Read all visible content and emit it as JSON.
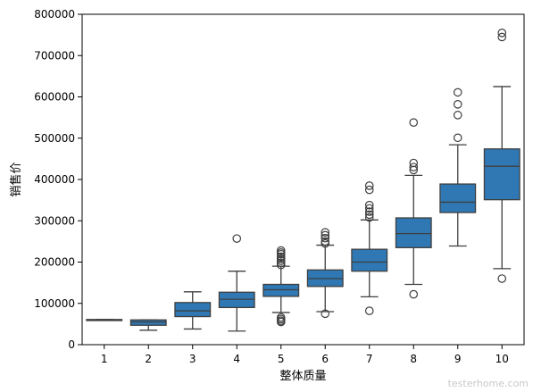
{
  "chart_data": {
    "type": "box",
    "xlabel": "整体质量",
    "ylabel": "销售价",
    "ylim": [
      0,
      800000
    ],
    "y_ticks": [
      0,
      100000,
      200000,
      300000,
      400000,
      500000,
      600000,
      700000,
      800000
    ],
    "grid": false,
    "box_color": "#2f78b4",
    "line_color": "#3f3f3f",
    "categories": [
      "1",
      "2",
      "3",
      "4",
      "5",
      "6",
      "7",
      "8",
      "9",
      "10"
    ],
    "boxes": [
      {
        "category": "1",
        "whisker_low": 60000,
        "q1": 60000,
        "median": 60000,
        "q3": 61000,
        "whisker_high": 61000,
        "outliers": []
      },
      {
        "category": "2",
        "whisker_low": 35000,
        "q1": 47000,
        "median": 55000,
        "q3": 60000,
        "whisker_high": 60000,
        "outliers": []
      },
      {
        "category": "3",
        "whisker_low": 38000,
        "q1": 68000,
        "median": 82000,
        "q3": 102000,
        "whisker_high": 128000,
        "outliers": []
      },
      {
        "category": "4",
        "whisker_low": 33000,
        "q1": 90000,
        "median": 110000,
        "q3": 127000,
        "whisker_high": 178000,
        "outliers": [
          257000
        ]
      },
      {
        "category": "5",
        "whisker_low": 78000,
        "q1": 117000,
        "median": 133000,
        "q3": 146000,
        "whisker_high": 190000,
        "outliers": [
          55000,
          58000,
          62000,
          66000,
          193000,
          198000,
          203000,
          208000,
          213000,
          219000,
          223000,
          228000
        ]
      },
      {
        "category": "6",
        "whisker_low": 80000,
        "q1": 141000,
        "median": 160000,
        "q3": 181000,
        "whisker_high": 241000,
        "outliers": [
          75000,
          245000,
          250000,
          258000,
          265000,
          272000
        ]
      },
      {
        "category": "7",
        "whisker_low": 116000,
        "q1": 178000,
        "median": 200000,
        "q3": 231000,
        "whisker_high": 302000,
        "outliers": [
          82000,
          308000,
          315000,
          322000,
          330000,
          338000,
          375000,
          385000
        ]
      },
      {
        "category": "8",
        "whisker_low": 146000,
        "q1": 235000,
        "median": 269000,
        "q3": 307000,
        "whisker_high": 410000,
        "outliers": [
          122000,
          423000,
          430000,
          440000,
          538000
        ]
      },
      {
        "category": "9",
        "whisker_low": 239000,
        "q1": 320000,
        "median": 345000,
        "q3": 389000,
        "whisker_high": 484000,
        "outliers": [
          501000,
          556000,
          582000,
          611000
        ]
      },
      {
        "category": "10",
        "whisker_low": 184000,
        "q1": 351000,
        "median": 432000,
        "q3": 474000,
        "whisker_high": 625000,
        "outliers": [
          160000,
          745000,
          755000
        ]
      }
    ]
  },
  "watermark": "testerhome.com"
}
